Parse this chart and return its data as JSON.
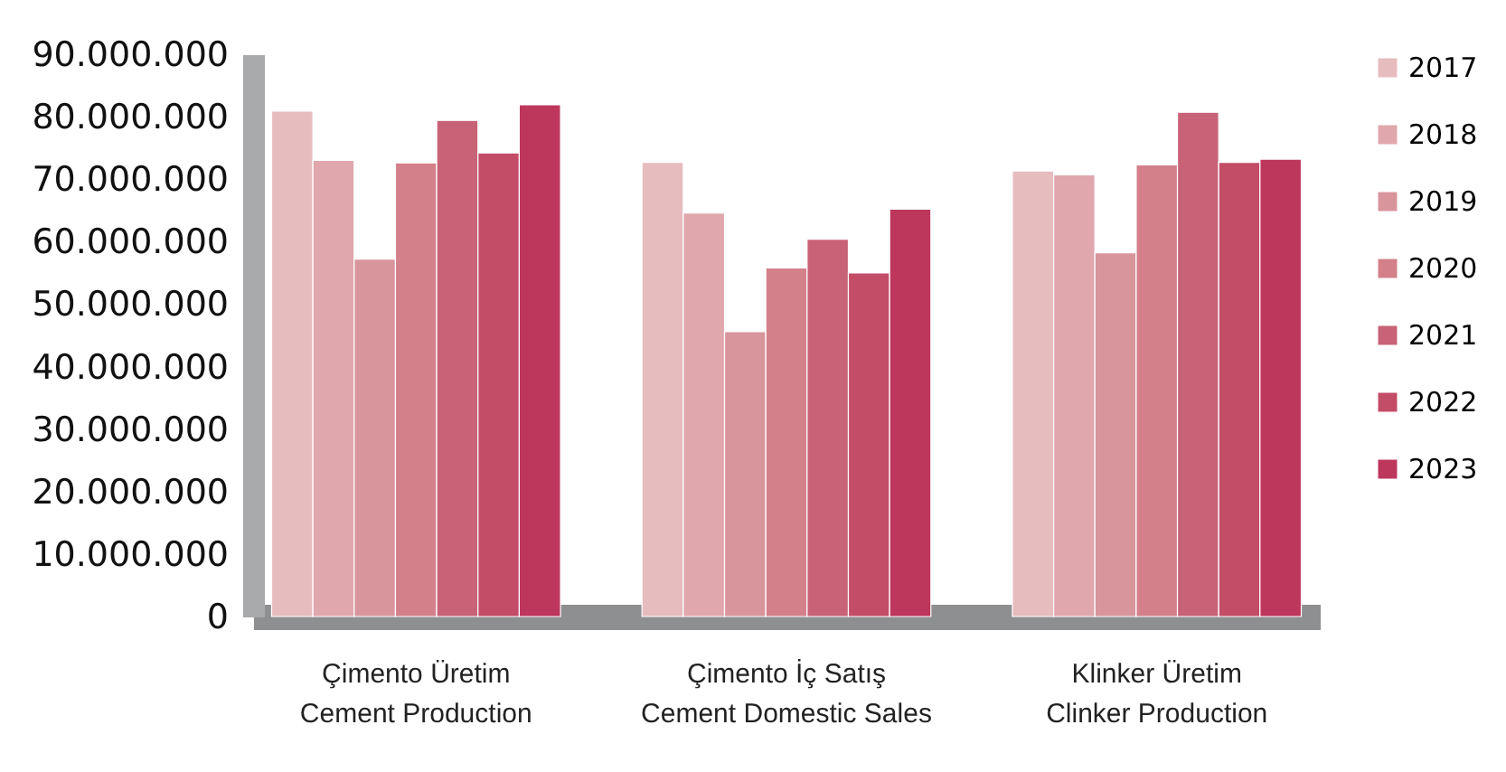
{
  "chart_data": {
    "type": "bar",
    "categories": [
      "Çimento Üretim\nCement Production",
      "Çimento İç Satış\nCement Domestic Sales",
      "Klinker Üretim\nClinker Production"
    ],
    "series": [
      {
        "name": "2017",
        "color": "#e6bcbf",
        "values": [
          80900000,
          72700000,
          71300000
        ]
      },
      {
        "name": "2018",
        "color": "#e0a7ad",
        "values": [
          73000000,
          64600000,
          70700000
        ]
      },
      {
        "name": "2019",
        "color": "#d9959c",
        "values": [
          57200000,
          45600000,
          58200000
        ]
      },
      {
        "name": "2020",
        "color": "#d4808b",
        "values": [
          72600000,
          55800000,
          72300000
        ]
      },
      {
        "name": "2021",
        "color": "#c86276",
        "values": [
          79400000,
          60400000,
          80700000
        ]
      },
      {
        "name": "2022",
        "color": "#c34c67",
        "values": [
          74200000,
          55000000,
          72700000
        ]
      },
      {
        "name": "2023",
        "color": "#bd365c",
        "values": [
          81900000,
          65200000,
          73200000
        ]
      }
    ],
    "ylim": [
      0,
      90000000
    ],
    "yticks": [
      0,
      {
        "value": 10000000,
        "label": "10.000.000"
      },
      {
        "value": 20000000,
        "label": "20.000.000"
      },
      {
        "value": 30000000,
        "label": "30.000.000"
      },
      {
        "value": 40000000,
        "label": "40.000.000"
      },
      {
        "value": 50000000,
        "label": "50.000.000"
      },
      {
        "value": 60000000,
        "label": "60.000.000"
      },
      {
        "value": 70000000,
        "label": "70.000.000"
      },
      {
        "value": 80000000,
        "label": "80.000.000"
      },
      {
        "value": 90000000,
        "label": "90.000.000"
      }
    ],
    "grid": false,
    "legend": "right"
  }
}
